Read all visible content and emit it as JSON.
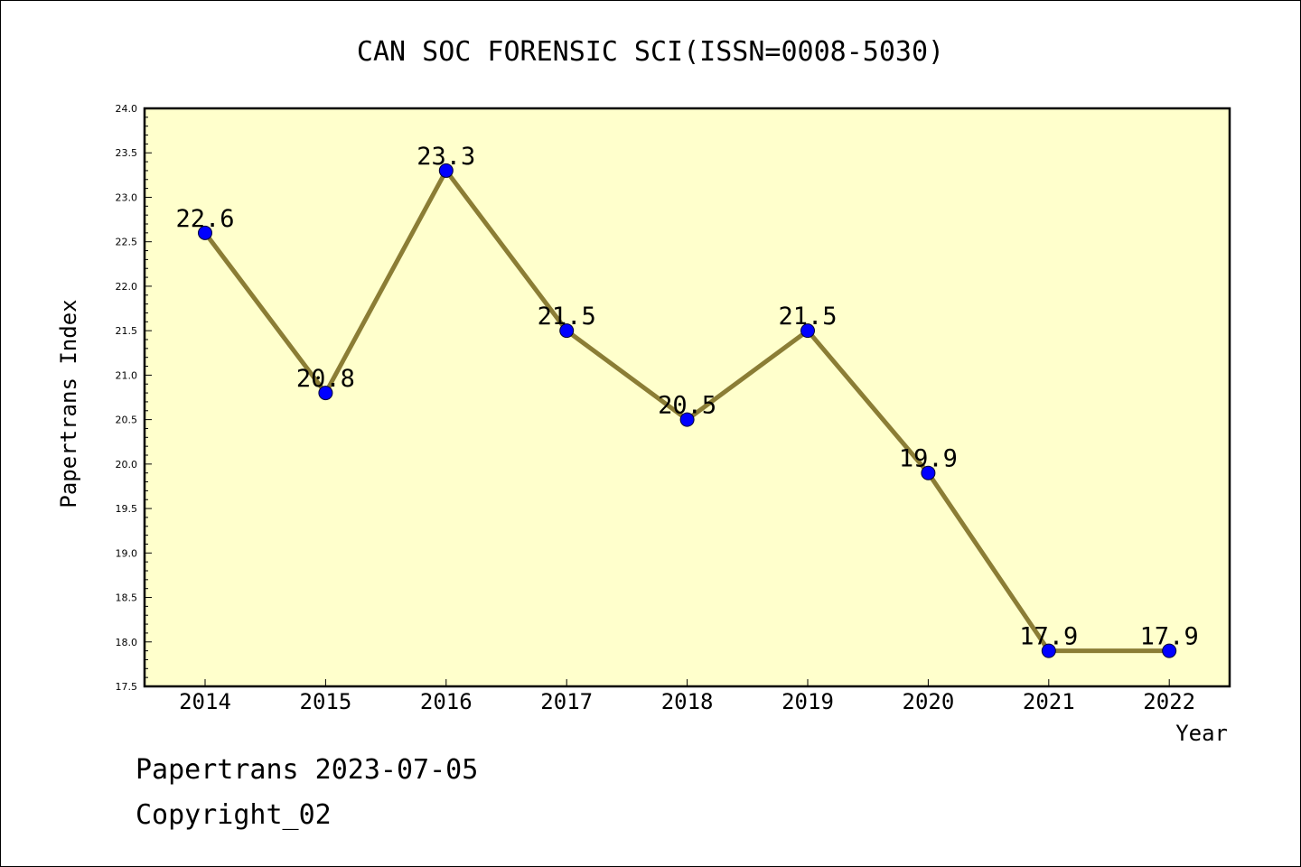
{
  "chart_data": {
    "type": "line",
    "title": "CAN SOC FORENSIC SCI(ISSN=0008-5030)",
    "xlabel": "Year",
    "ylabel": "Papertrans Index",
    "categories": [
      "2014",
      "2015",
      "2016",
      "2017",
      "2018",
      "2019",
      "2020",
      "2021",
      "2022"
    ],
    "values": [
      22.6,
      20.8,
      23.3,
      21.5,
      20.5,
      21.5,
      19.9,
      17.9,
      17.9
    ],
    "data_labels": [
      "22.6",
      "20.8",
      "23.3",
      "21.5",
      "20.5",
      "21.5",
      "19.9",
      "17.9",
      "17.9"
    ],
    "ylim": [
      17.5,
      24.0
    ],
    "yticks": [
      "17.5",
      "18.0",
      "18.5",
      "19.0",
      "19.5",
      "20.0",
      "20.5",
      "21.0",
      "21.5",
      "22.0",
      "22.5",
      "23.0",
      "23.5",
      "24.0"
    ],
    "grid": false,
    "colors": {
      "plot_background": "#ffffcc",
      "line": "#8b7d35",
      "marker": "#0000ff"
    }
  },
  "footer": {
    "line1": "Papertrans 2023-07-05",
    "line2": "Copyright_02"
  }
}
